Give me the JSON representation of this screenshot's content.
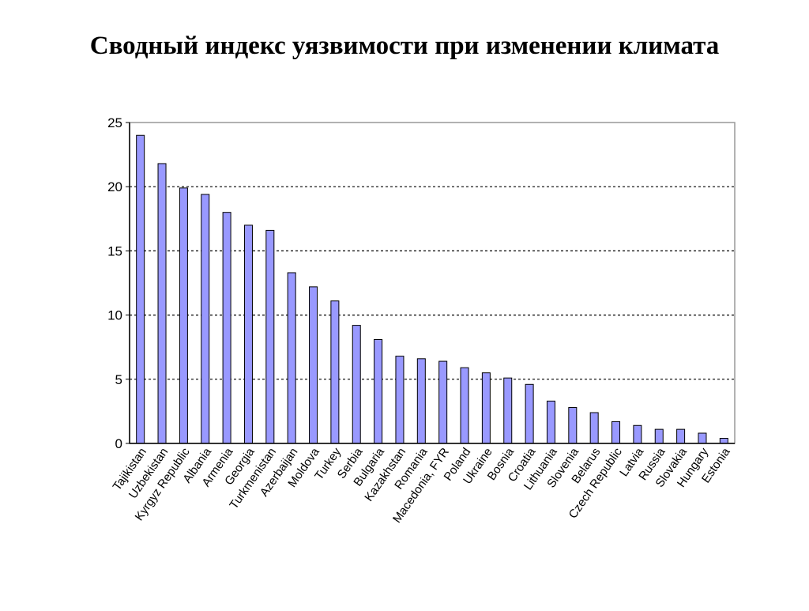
{
  "title": "Сводный индекс уязвимости при изменении климата",
  "chart_data": {
    "type": "bar",
    "categories": [
      "Tajikistan",
      "Uzbekistan",
      "Kyrgyz Republic",
      "Albania",
      "Armenia",
      "Georgia",
      "Turkmenistan",
      "Azerbaijan",
      "Moldova",
      "Turkey",
      "Serbia",
      "Bulgaria",
      "Kazakhstan",
      "Romania",
      "Macedonia, FYR",
      "Poland",
      "Ukraine",
      "Bosnia",
      "Croatia",
      "Lithuania",
      "Slovenia",
      "Belarus",
      "Czech Republic",
      "Latvia",
      "Russia",
      "Slovakia",
      "Hungary",
      "Estonia"
    ],
    "values": [
      24.0,
      21.8,
      19.9,
      19.4,
      18.0,
      17.0,
      16.6,
      13.3,
      12.2,
      11.1,
      9.2,
      8.1,
      6.8,
      6.6,
      6.4,
      5.9,
      5.5,
      5.1,
      4.6,
      3.3,
      2.8,
      2.4,
      1.7,
      1.4,
      1.1,
      1.1,
      0.8,
      0.4
    ],
    "yticks": [
      0,
      5,
      10,
      15,
      20,
      25
    ],
    "ylim": [
      0,
      25
    ],
    "grid": "horizontal dashed",
    "legend": "none",
    "colors": {
      "bar_fill": "#9999ff",
      "bar_stroke": "#000000",
      "plot_border": "#999999",
      "gridline": "#000000"
    }
  }
}
